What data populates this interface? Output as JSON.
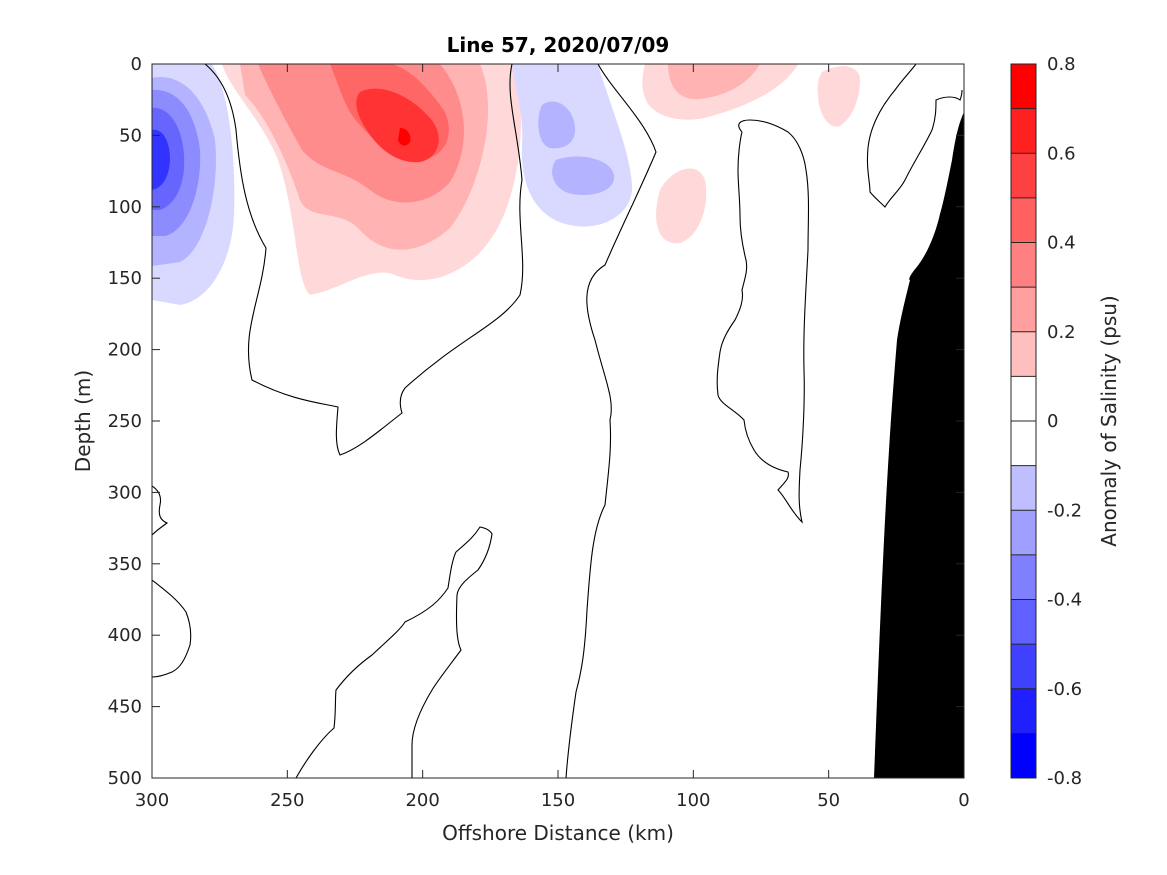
{
  "chart_data": {
    "type": "contour",
    "title": "Line 57, 2020/07/09",
    "xlabel": "Offshore Distance (km)",
    "ylabel": "Depth (m)",
    "colorbar_label": "Anomaly of Salinity (psu)",
    "xlim": [
      300,
      0
    ],
    "ylim": [
      0,
      500
    ],
    "x_reversed": true,
    "y_reversed": true,
    "xticks": [
      300,
      250,
      200,
      150,
      100,
      50,
      0
    ],
    "yticks": [
      0,
      50,
      100,
      150,
      200,
      250,
      300,
      350,
      400,
      450,
      500
    ],
    "colorbar": {
      "clim": [
        -0.8,
        0.8
      ],
      "levels": [
        -0.8,
        -0.7,
        -0.6,
        -0.5,
        -0.4,
        -0.3,
        -0.2,
        -0.1,
        0,
        0.1,
        0.2,
        0.3,
        0.4,
        0.5,
        0.6,
        0.7,
        0.8
      ],
      "tick_values": [
        -0.8,
        -0.6,
        -0.4,
        -0.2,
        0,
        0.2,
        0.4,
        0.6,
        0.8
      ],
      "tick_labels": [
        "-0.8",
        "-0.6",
        "-0.4",
        "-0.2",
        "0",
        "0.2",
        "0.4",
        "0.6",
        "0.8"
      ],
      "low_color": "#0000ff",
      "high_color": "#ff0000",
      "mid_color": "#ffffff"
    },
    "features": [
      {
        "name": "fresh anomaly core",
        "x_km": 298,
        "depth_m": 70,
        "value": -0.6
      },
      {
        "name": "fresh anomaly",
        "x_km": 148,
        "depth_m": 40,
        "value": -0.3
      },
      {
        "name": "fresh anomaly",
        "x_km": 142,
        "depth_m": 78,
        "value": -0.3
      },
      {
        "name": "salty anomaly core",
        "x_km": 205,
        "depth_m": 55,
        "value": 0.6
      },
      {
        "name": "salty anomaly",
        "x_km": 95,
        "depth_m": 10,
        "value": 0.3
      },
      {
        "name": "salty anomaly",
        "x_km": 105,
        "depth_m": 95,
        "value": 0.1
      },
      {
        "name": "salty anomaly",
        "x_km": 42,
        "depth_m": 15,
        "value": 0.1
      }
    ],
    "bathymetry_color": "#000000"
  }
}
